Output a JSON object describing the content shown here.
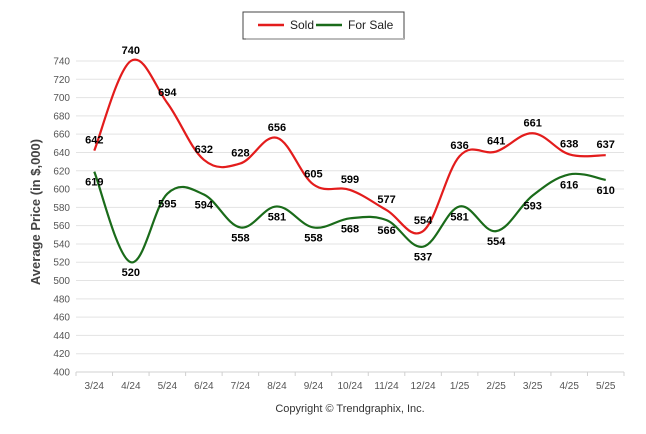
{
  "chart_data": {
    "type": "line",
    "categories": [
      "3/24",
      "4/24",
      "5/24",
      "6/24",
      "7/24",
      "8/24",
      "9/24",
      "10/24",
      "11/24",
      "12/24",
      "1/25",
      "2/25",
      "3/25",
      "4/25",
      "5/25"
    ],
    "series": [
      {
        "name": "Sold",
        "color": "#e31c1c",
        "values": [
          642,
          740,
          694,
          632,
          628,
          656,
          605,
          599,
          577,
          554,
          636,
          641,
          661,
          638,
          637
        ]
      },
      {
        "name": "For Sale",
        "color": "#1a6b1a",
        "values": [
          619,
          520,
          595,
          594,
          558,
          581,
          558,
          568,
          566,
          537,
          581,
          554,
          593,
          616,
          610
        ]
      }
    ],
    "ylabel": "Average Price (in $,000)",
    "ylim": [
      400,
      740
    ],
    "yticks": [
      400,
      420,
      440,
      460,
      480,
      500,
      520,
      540,
      560,
      580,
      600,
      620,
      640,
      660,
      680,
      700,
      720,
      740
    ],
    "grid": true,
    "legend": "top-center",
    "footer": "Copyright © Trendgraphix, Inc."
  }
}
